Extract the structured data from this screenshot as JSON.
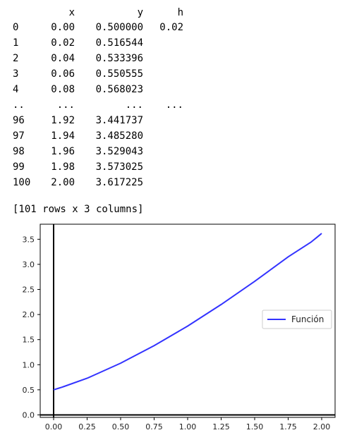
{
  "table": {
    "columns": [
      "x",
      "y",
      "h"
    ],
    "rows": [
      {
        "index": "0",
        "x": "0.00",
        "y": "0.500000",
        "h": "0.02"
      },
      {
        "index": "1",
        "x": "0.02",
        "y": "0.516544",
        "h": ""
      },
      {
        "index": "2",
        "x": "0.04",
        "y": "0.533396",
        "h": ""
      },
      {
        "index": "3",
        "x": "0.06",
        "y": "0.550555",
        "h": ""
      },
      {
        "index": "4",
        "x": "0.08",
        "y": "0.568023",
        "h": ""
      },
      {
        "index": "..",
        "x": "...",
        "y": "...",
        "h": "..."
      },
      {
        "index": "96",
        "x": "1.92",
        "y": "3.441737",
        "h": ""
      },
      {
        "index": "97",
        "x": "1.94",
        "y": "3.485280",
        "h": ""
      },
      {
        "index": "98",
        "x": "1.96",
        "y": "3.529043",
        "h": ""
      },
      {
        "index": "99",
        "x": "1.98",
        "y": "3.573025",
        "h": ""
      },
      {
        "index": "100",
        "x": "2.00",
        "y": "3.617225",
        "h": ""
      }
    ],
    "footer": "[101 rows x 3 columns]"
  },
  "chart_data": {
    "type": "line",
    "title": "",
    "xlabel": "",
    "ylabel": "",
    "xlim": [
      -0.1,
      2.1
    ],
    "ylim": [
      -0.05,
      3.8
    ],
    "xticks": [
      "0.00",
      "0.25",
      "0.50",
      "0.75",
      "1.00",
      "1.25",
      "1.50",
      "1.75",
      "2.00"
    ],
    "yticks": [
      "0.0",
      "0.5",
      "1.0",
      "1.5",
      "2.0",
      "2.5",
      "3.0",
      "3.5"
    ],
    "grid": false,
    "legend": {
      "position": "center-right"
    },
    "series": [
      {
        "name": "Función",
        "color": "#3333ff",
        "x": [
          0.0,
          0.02,
          0.04,
          0.06,
          0.08,
          0.25,
          0.5,
          0.75,
          1.0,
          1.25,
          1.5,
          1.75,
          1.92,
          1.94,
          1.96,
          1.98,
          2.0
        ],
        "y": [
          0.5,
          0.516544,
          0.533396,
          0.550555,
          0.568023,
          0.73,
          1.03,
          1.38,
          1.77,
          2.2,
          2.66,
          3.15,
          3.441737,
          3.48528,
          3.529043,
          3.573025,
          3.617225
        ]
      }
    ]
  }
}
